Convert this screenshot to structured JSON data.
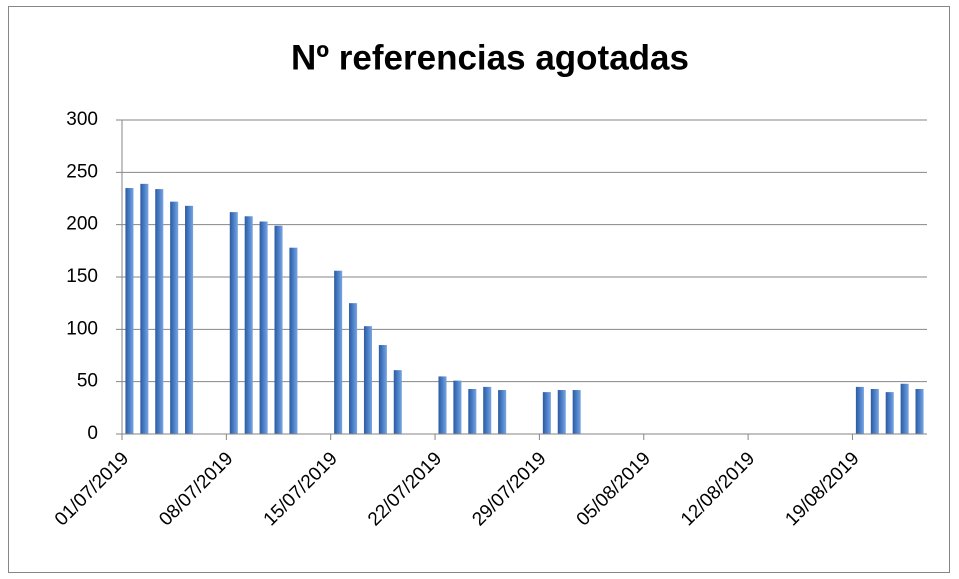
{
  "chart_data": {
    "type": "bar",
    "title": "Nº referencias agotadas",
    "x": [
      "01/07/2019",
      "02/07/2019",
      "03/07/2019",
      "04/07/2019",
      "05/07/2019",
      "08/07/2019",
      "09/07/2019",
      "10/07/2019",
      "11/07/2019",
      "12/07/2019",
      "15/07/2019",
      "16/07/2019",
      "17/07/2019",
      "18/07/2019",
      "19/07/2019",
      "22/07/2019",
      "23/07/2019",
      "24/07/2019",
      "25/07/2019",
      "26/07/2019",
      "29/07/2019",
      "30/07/2019",
      "31/07/2019",
      "19/08/2019",
      "20/08/2019",
      "21/08/2019",
      "22/08/2019",
      "23/08/2019"
    ],
    "values": [
      235,
      239,
      234,
      222,
      218,
      212,
      208,
      203,
      199,
      178,
      156,
      125,
      103,
      85,
      61,
      55,
      51,
      43,
      45,
      42,
      40,
      42,
      42,
      45,
      43,
      40,
      48,
      43
    ],
    "color": "#4a7fc9",
    "xlim": [
      "01/07/2019",
      "24/08/2019"
    ],
    "xticks": [
      "01/07/2019",
      "08/07/2019",
      "15/07/2019",
      "22/07/2019",
      "29/07/2019",
      "05/08/2019",
      "12/08/2019",
      "19/08/2019"
    ],
    "ylim": [
      0,
      300
    ],
    "yticks": [
      0,
      50,
      100,
      150,
      200,
      250,
      300
    ],
    "grid": true
  }
}
